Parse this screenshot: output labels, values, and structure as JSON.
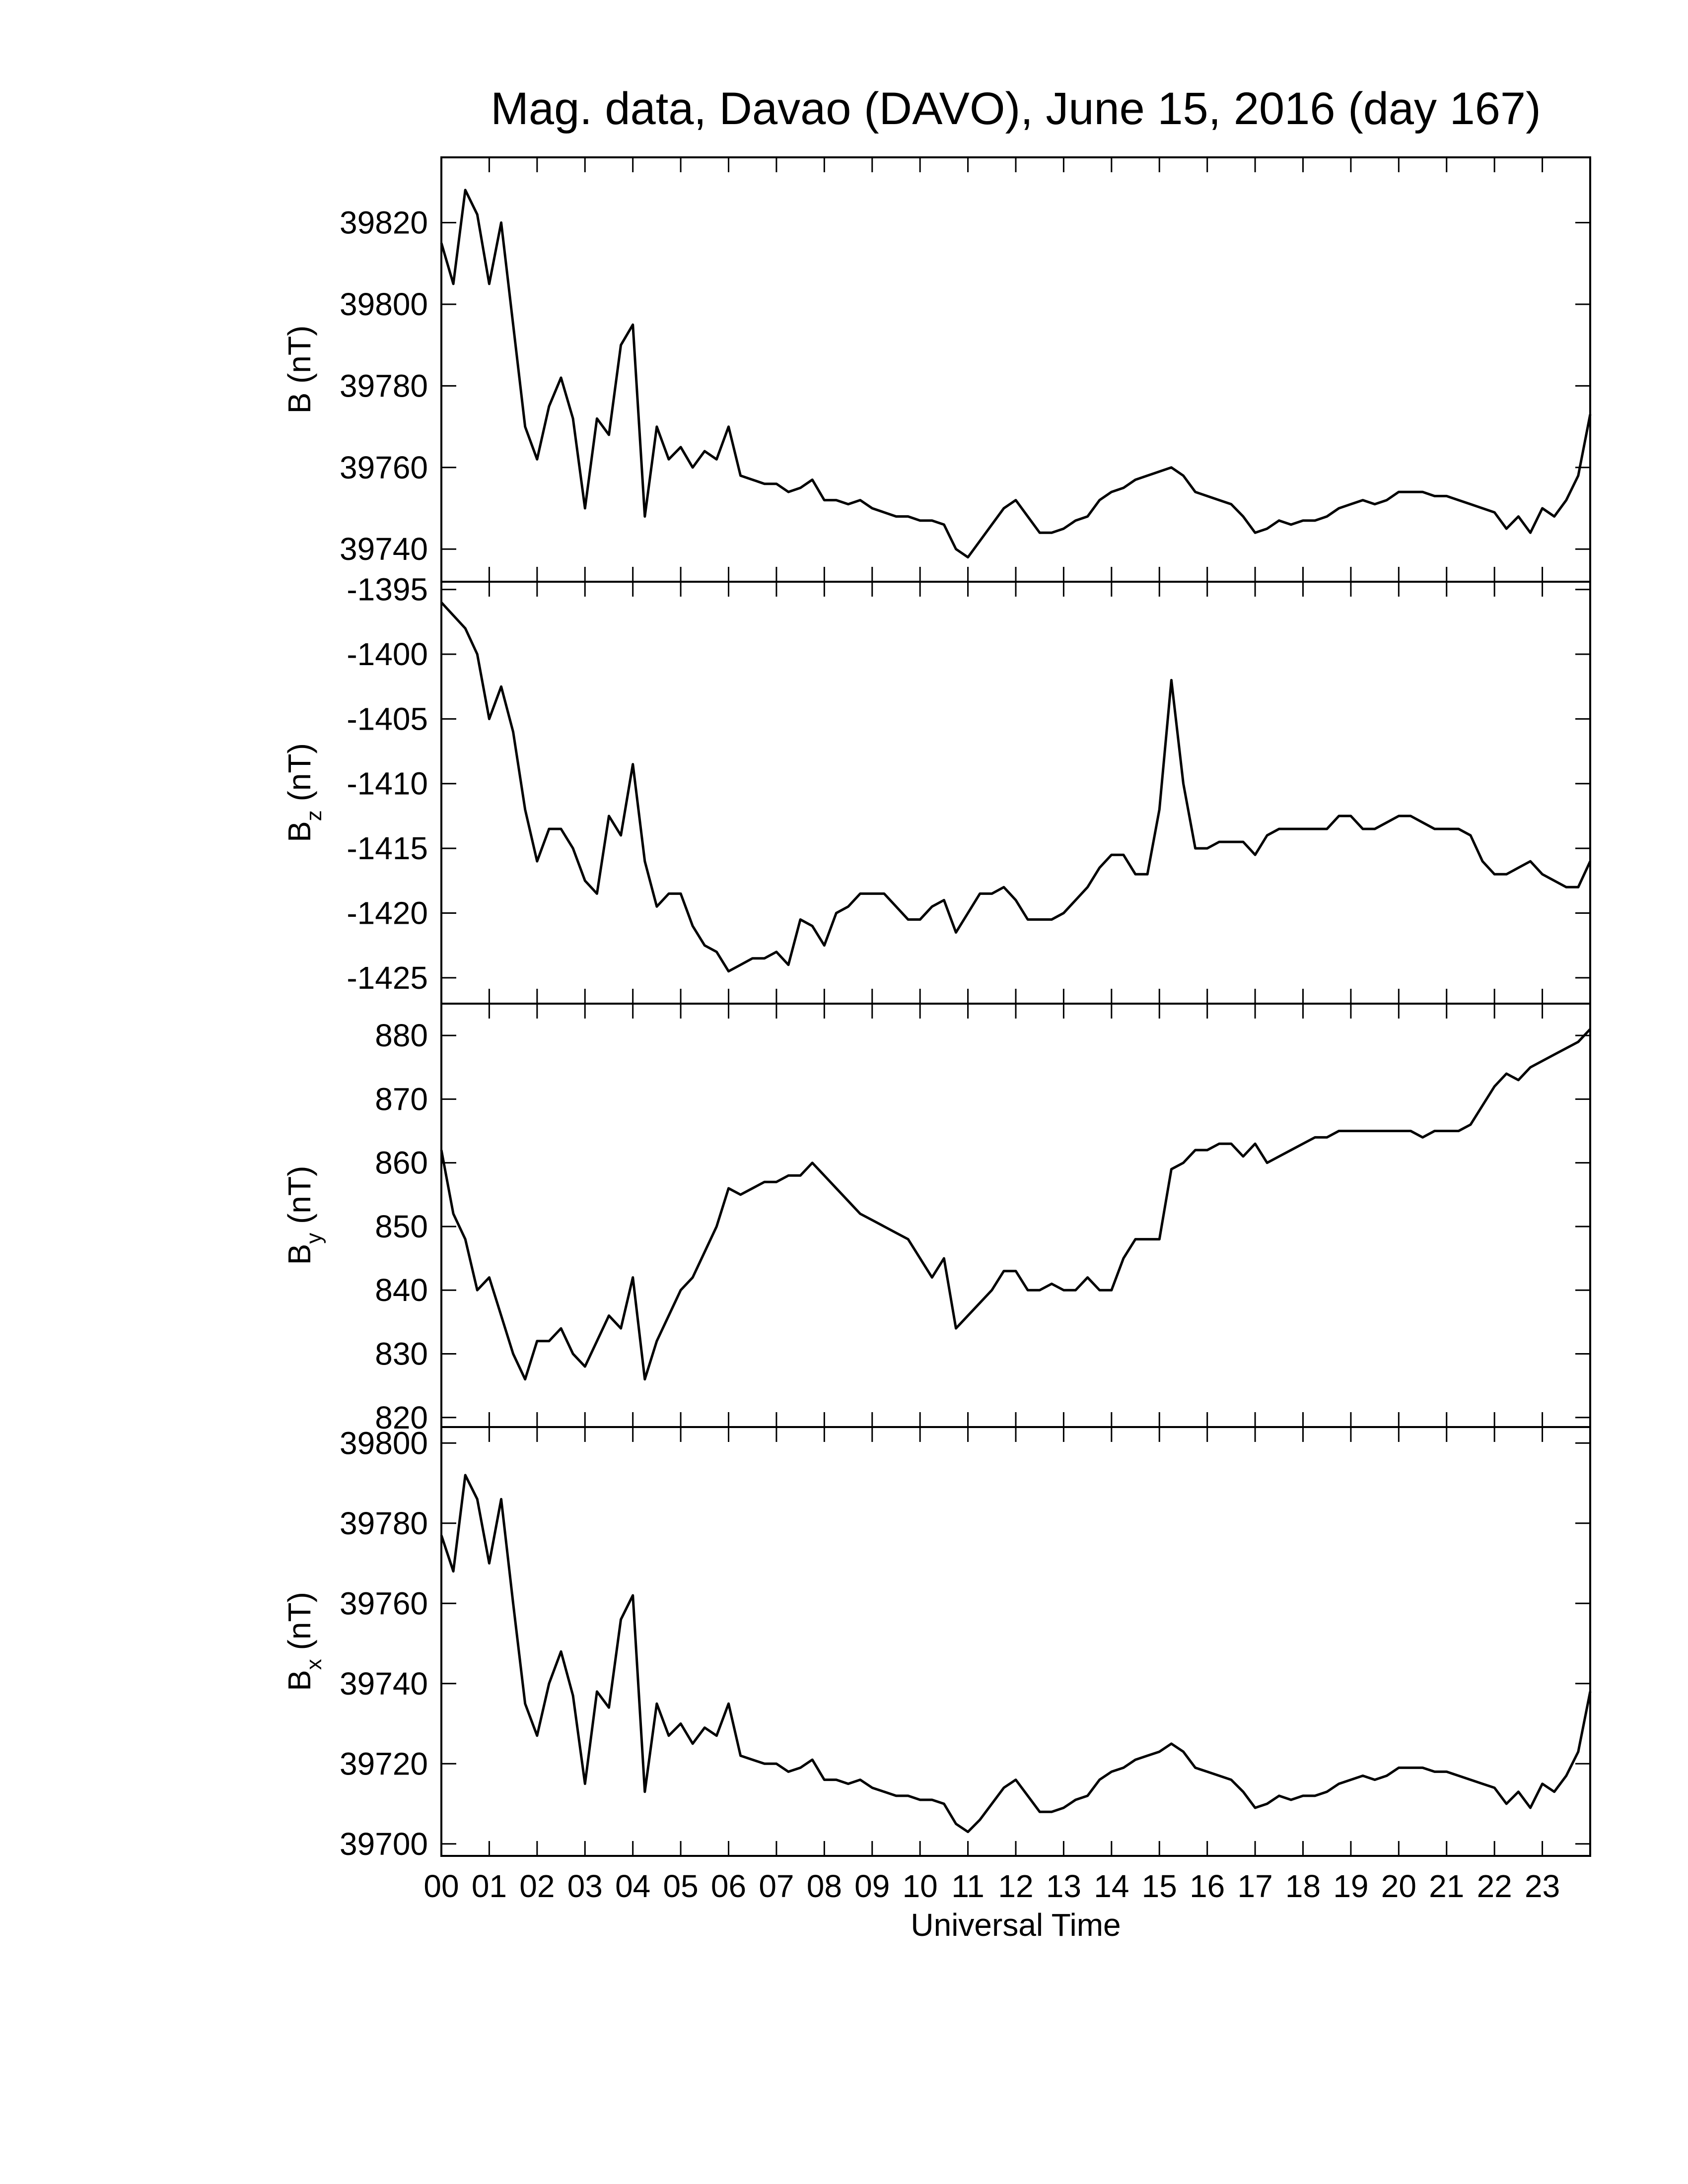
{
  "chart_data": [
    {
      "type": "line",
      "title": "Mag. data, Davao (DAVO), June 15, 2016 (day 167)",
      "ylabel": "B",
      "ylabel_unit": "(nT)",
      "xlim": [
        0,
        24
      ],
      "xticks": [
        0,
        1,
        2,
        3,
        4,
        5,
        6,
        7,
        8,
        9,
        10,
        11,
        12,
        13,
        14,
        15,
        16,
        17,
        18,
        19,
        20,
        21,
        22,
        23
      ],
      "ylim": [
        39732,
        39836
      ],
      "yticks": [
        39740,
        39760,
        39780,
        39800,
        39820
      ],
      "x": [
        0,
        0.25,
        0.5,
        0.75,
        1,
        1.25,
        1.5,
        1.75,
        2,
        2.25,
        2.5,
        2.75,
        3,
        3.25,
        3.5,
        3.75,
        4,
        4.25,
        4.5,
        4.75,
        5,
        5.25,
        5.5,
        5.75,
        6,
        6.25,
        6.5,
        6.75,
        7,
        7.25,
        7.5,
        7.75,
        8,
        8.25,
        8.5,
        8.75,
        9,
        9.25,
        9.5,
        9.75,
        10,
        10.25,
        10.5,
        10.75,
        11,
        11.25,
        11.5,
        11.75,
        12,
        12.25,
        12.5,
        12.75,
        13,
        13.25,
        13.5,
        13.75,
        14,
        14.25,
        14.5,
        14.75,
        15,
        15.25,
        15.5,
        15.75,
        16,
        16.25,
        16.5,
        16.75,
        17,
        17.25,
        17.5,
        17.75,
        18,
        18.25,
        18.5,
        18.75,
        19,
        19.25,
        19.5,
        19.75,
        20,
        20.25,
        20.5,
        20.75,
        21,
        21.25,
        21.5,
        21.75,
        22,
        22.25,
        22.5,
        22.75,
        23,
        23.25,
        23.5,
        23.75,
        24
      ],
      "series": [
        {
          "color": "#000000",
          "values": [
            39815,
            39805,
            39828,
            39822,
            39805,
            39820,
            39795,
            39770,
            39762,
            39775,
            39782,
            39772,
            39750,
            39772,
            39768,
            39790,
            39795,
            39748,
            39770,
            39762,
            39765,
            39760,
            39764,
            39762,
            39770,
            39758,
            39757,
            39756,
            39756,
            39754,
            39755,
            39757,
            39752,
            39752,
            39751,
            39752,
            39750,
            39749,
            39748,
            39748,
            39747,
            39747,
            39746,
            39740,
            39738,
            39742,
            39746,
            39750,
            39752,
            39748,
            39744,
            39744,
            39745,
            39747,
            39748,
            39752,
            39754,
            39755,
            39757,
            39758,
            39759,
            39760,
            39758,
            39754,
            39753,
            39752,
            39751,
            39748,
            39744,
            39745,
            39747,
            39746,
            39747,
            39747,
            39748,
            39750,
            39751,
            39752,
            39751,
            39752,
            39754,
            39754,
            39754,
            39753,
            39753,
            39752,
            39751,
            39750,
            39749,
            39745,
            39748,
            39744,
            39750,
            39748,
            39752,
            39758,
            39773
          ]
        }
      ]
    },
    {
      "type": "line",
      "ylabel": "B",
      "ylabel_sub": "z",
      "ylabel_unit": "(nT)",
      "xlim": [
        0,
        24
      ],
      "xticks": [
        0,
        1,
        2,
        3,
        4,
        5,
        6,
        7,
        8,
        9,
        10,
        11,
        12,
        13,
        14,
        15,
        16,
        17,
        18,
        19,
        20,
        21,
        22,
        23
      ],
      "ylim": [
        -1427,
        -1394.4
      ],
      "yticks": [
        -1425,
        -1420,
        -1415,
        -1410,
        -1405,
        -1400,
        -1395
      ],
      "x": [
        0,
        0.25,
        0.5,
        0.75,
        1,
        1.25,
        1.5,
        1.75,
        2,
        2.25,
        2.5,
        2.75,
        3,
        3.25,
        3.5,
        3.75,
        4,
        4.25,
        4.5,
        4.75,
        5,
        5.25,
        5.5,
        5.75,
        6,
        6.25,
        6.5,
        6.75,
        7,
        7.25,
        7.5,
        7.75,
        8,
        8.25,
        8.5,
        8.75,
        9,
        9.25,
        9.5,
        9.75,
        10,
        10.25,
        10.5,
        10.75,
        11,
        11.25,
        11.5,
        11.75,
        12,
        12.25,
        12.5,
        12.75,
        13,
        13.25,
        13.5,
        13.75,
        14,
        14.25,
        14.5,
        14.75,
        15,
        15.25,
        15.5,
        15.75,
        16,
        16.25,
        16.5,
        16.75,
        17,
        17.25,
        17.5,
        17.75,
        18,
        18.25,
        18.5,
        18.75,
        19,
        19.25,
        19.5,
        19.75,
        20,
        20.25,
        20.5,
        20.75,
        21,
        21.25,
        21.5,
        21.75,
        22,
        22.25,
        22.5,
        22.75,
        23,
        23.25,
        23.5,
        23.75,
        24
      ],
      "series": [
        {
          "color": "#000000",
          "values": [
            -1396,
            -1397,
            -1398,
            -1400,
            -1405,
            -1402.5,
            -1406,
            -1412,
            -1416,
            -1413.5,
            -1413.5,
            -1415,
            -1417.5,
            -1418.5,
            -1412.5,
            -1414,
            -1408.5,
            -1416,
            -1419.5,
            -1418.5,
            -1418.5,
            -1421,
            -1422.5,
            -1423,
            -1424.5,
            -1424,
            -1423.5,
            -1423.5,
            -1423,
            -1424,
            -1420.5,
            -1421,
            -1422.5,
            -1420,
            -1419.5,
            -1418.5,
            -1418.5,
            -1418.5,
            -1419.5,
            -1420.5,
            -1420.5,
            -1419.5,
            -1419,
            -1421.5,
            -1420,
            -1418.5,
            -1418.5,
            -1418,
            -1419,
            -1420.5,
            -1420.5,
            -1420.5,
            -1420,
            -1419,
            -1418,
            -1416.5,
            -1415.5,
            -1415.5,
            -1417,
            -1417,
            -1412,
            -1402,
            -1410,
            -1415,
            -1415,
            -1414.5,
            -1414.5,
            -1414.5,
            -1415.5,
            -1414,
            -1413.5,
            -1413.5,
            -1413.5,
            -1413.5,
            -1413.5,
            -1412.5,
            -1412.5,
            -1413.5,
            -1413.5,
            -1413,
            -1412.5,
            -1412.5,
            -1413,
            -1413.5,
            -1413.5,
            -1413.5,
            -1414,
            -1416,
            -1417,
            -1417,
            -1416.5,
            -1416,
            -1417,
            -1417.5,
            -1418,
            -1418,
            -1416
          ]
        }
      ]
    },
    {
      "type": "line",
      "ylabel": "B",
      "ylabel_sub": "y",
      "ylabel_unit": "(nT)",
      "xlim": [
        0,
        24
      ],
      "xticks": [
        0,
        1,
        2,
        3,
        4,
        5,
        6,
        7,
        8,
        9,
        10,
        11,
        12,
        13,
        14,
        15,
        16,
        17,
        18,
        19,
        20,
        21,
        22,
        23
      ],
      "ylim": [
        818.5,
        885
      ],
      "yticks": [
        820,
        830,
        840,
        850,
        860,
        870,
        880
      ],
      "x": [
        0,
        0.25,
        0.5,
        0.75,
        1,
        1.25,
        1.5,
        1.75,
        2,
        2.25,
        2.5,
        2.75,
        3,
        3.25,
        3.5,
        3.75,
        4,
        4.25,
        4.5,
        4.75,
        5,
        5.25,
        5.5,
        5.75,
        6,
        6.25,
        6.5,
        6.75,
        7,
        7.25,
        7.5,
        7.75,
        8,
        8.25,
        8.5,
        8.75,
        9,
        9.25,
        9.5,
        9.75,
        10,
        10.25,
        10.5,
        10.75,
        11,
        11.25,
        11.5,
        11.75,
        12,
        12.25,
        12.5,
        12.75,
        13,
        13.25,
        13.5,
        13.75,
        14,
        14.25,
        14.5,
        14.75,
        15,
        15.25,
        15.5,
        15.75,
        16,
        16.25,
        16.5,
        16.75,
        17,
        17.25,
        17.5,
        17.75,
        18,
        18.25,
        18.5,
        18.75,
        19,
        19.25,
        19.5,
        19.75,
        20,
        20.25,
        20.5,
        20.75,
        21,
        21.25,
        21.5,
        21.75,
        22,
        22.25,
        22.5,
        22.75,
        23,
        23.25,
        23.5,
        23.75,
        24
      ],
      "series": [
        {
          "color": "#000000",
          "values": [
            862,
            852,
            848,
            840,
            842,
            836,
            830,
            826,
            832,
            832,
            834,
            830,
            828,
            832,
            836,
            834,
            842,
            826,
            832,
            836,
            840,
            842,
            846,
            850,
            856,
            855,
            856,
            857,
            857,
            858,
            858,
            860,
            858,
            856,
            854,
            852,
            851,
            850,
            849,
            848,
            845,
            842,
            845,
            834,
            836,
            838,
            840,
            843,
            843,
            840,
            840,
            841,
            840,
            840,
            842,
            840,
            840,
            845,
            848,
            848,
            848,
            859,
            860,
            862,
            862,
            863,
            863,
            861,
            863,
            860,
            861,
            862,
            863,
            864,
            864,
            865,
            865,
            865,
            865,
            865,
            865,
            865,
            864,
            865,
            865,
            865,
            866,
            869,
            872,
            874,
            873,
            875,
            876,
            877,
            878,
            879,
            881
          ]
        }
      ]
    },
    {
      "type": "line",
      "ylabel": "B",
      "ylabel_sub": "x",
      "ylabel_unit": "(nT)",
      "xlabel": "Universal Time",
      "xlim": [
        0,
        24
      ],
      "xticks": [
        {
          "value": 0,
          "label": "00"
        },
        {
          "value": 1,
          "label": "01"
        },
        {
          "value": 2,
          "label": "02"
        },
        {
          "value": 3,
          "label": "03"
        },
        {
          "value": 4,
          "label": "04"
        },
        {
          "value": 5,
          "label": "05"
        },
        {
          "value": 6,
          "label": "06"
        },
        {
          "value": 7,
          "label": "07"
        },
        {
          "value": 8,
          "label": "08"
        },
        {
          "value": 9,
          "label": "09"
        },
        10,
        11,
        12,
        13,
        14,
        15,
        16,
        17,
        18,
        19,
        20,
        21,
        22,
        23
      ],
      "ylim": [
        39697,
        39804
      ],
      "yticks": [
        39700,
        39720,
        39740,
        39760,
        39780,
        39800
      ],
      "x": [
        0,
        0.25,
        0.5,
        0.75,
        1,
        1.25,
        1.5,
        1.75,
        2,
        2.25,
        2.5,
        2.75,
        3,
        3.25,
        3.5,
        3.75,
        4,
        4.25,
        4.5,
        4.75,
        5,
        5.25,
        5.5,
        5.75,
        6,
        6.25,
        6.5,
        6.75,
        7,
        7.25,
        7.5,
        7.75,
        8,
        8.25,
        8.5,
        8.75,
        9,
        9.25,
        9.5,
        9.75,
        10,
        10.25,
        10.5,
        10.75,
        11,
        11.25,
        11.5,
        11.75,
        12,
        12.25,
        12.5,
        12.75,
        13,
        13.25,
        13.5,
        13.75,
        14,
        14.25,
        14.5,
        14.75,
        15,
        15.25,
        15.5,
        15.75,
        16,
        16.25,
        16.5,
        16.75,
        17,
        17.25,
        17.5,
        17.75,
        18,
        18.25,
        18.5,
        18.75,
        19,
        19.25,
        19.5,
        19.75,
        20,
        20.25,
        20.5,
        20.75,
        21,
        21.25,
        21.5,
        21.75,
        22,
        22.25,
        22.5,
        22.75,
        23,
        23.25,
        23.5,
        23.75,
        24
      ],
      "series": [
        {
          "color": "#000000",
          "values": [
            39777,
            39768,
            39792,
            39786,
            39770,
            39786,
            39760,
            39735,
            39727,
            39740,
            39748,
            39737,
            39715,
            39738,
            39734,
            39756,
            39762,
            39713,
            39735,
            39727,
            39730,
            39725,
            39729,
            39727,
            39735,
            39722,
            39721,
            39720,
            39720,
            39718,
            39719,
            39721,
            39716,
            39716,
            39715,
            39716,
            39714,
            39713,
            39712,
            39712,
            39711,
            39711,
            39710,
            39705,
            39703,
            39706,
            39710,
            39714,
            39716,
            39712,
            39708,
            39708,
            39709,
            39711,
            39712,
            39716,
            39718,
            39719,
            39721,
            39722,
            39723,
            39725,
            39723,
            39719,
            39718,
            39717,
            39716,
            39713,
            39709,
            39710,
            39712,
            39711,
            39712,
            39712,
            39713,
            39715,
            39716,
            39717,
            39716,
            39717,
            39719,
            39719,
            39719,
            39718,
            39718,
            39717,
            39716,
            39715,
            39714,
            39710,
            39713,
            39709,
            39715,
            39713,
            39717,
            39723,
            39738
          ]
        }
      ]
    }
  ]
}
